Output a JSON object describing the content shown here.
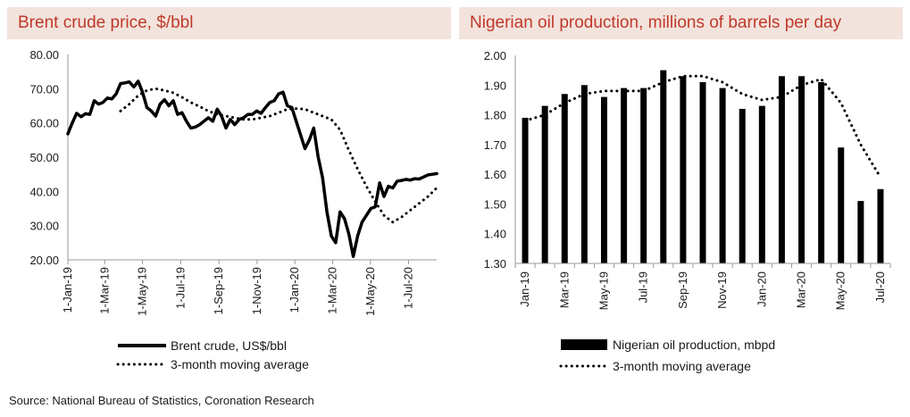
{
  "source": "Source: National Bureau of Statistics, Coronation Research",
  "chart_data": [
    {
      "type": "line",
      "title": "Brent crude price, $/bbl",
      "ylim": [
        20,
        80
      ],
      "yticks": [
        "20.00",
        "30.00",
        "40.00",
        "50.00",
        "60.00",
        "70.00",
        "80.00"
      ],
      "yticks_values": [
        20,
        30,
        40,
        50,
        60,
        70,
        80
      ],
      "x_range": [
        0,
        84
      ],
      "xticks": [
        {
          "x": 0,
          "label": "1-Jan-19"
        },
        {
          "x": 8.4,
          "label": "1-Mar-19"
        },
        {
          "x": 17,
          "label": "1-May-19"
        },
        {
          "x": 25.7,
          "label": "1-Jul-19"
        },
        {
          "x": 34.4,
          "label": "1-Sep-19"
        },
        {
          "x": 43.1,
          "label": "1-Nov-19"
        },
        {
          "x": 51.7,
          "label": "1-Jan-20"
        },
        {
          "x": 60.3,
          "label": "1-Mar-20"
        },
        {
          "x": 68.9,
          "label": "1-May-20"
        },
        {
          "x": 77.6,
          "label": "1-Jul-20"
        }
      ],
      "series": [
        {
          "name": "Brent crude, US$/bbl",
          "style": "solid",
          "x": [
            0,
            1,
            2,
            3,
            4,
            5,
            6,
            7,
            8,
            9,
            10,
            11,
            12,
            13,
            14,
            15,
            16,
            17,
            18,
            19,
            20,
            21,
            22,
            23,
            24,
            25,
            26,
            27,
            28,
            29,
            30,
            31,
            32,
            33,
            34,
            35,
            36,
            37,
            38,
            39,
            40,
            41,
            42,
            43,
            44,
            45,
            46,
            47,
            48,
            49,
            50,
            51,
            52,
            53,
            54,
            55,
            56,
            57,
            58,
            59,
            60,
            61,
            62,
            63,
            64,
            65,
            66,
            67,
            68,
            69,
            70,
            71,
            72,
            73,
            74,
            75,
            76,
            77,
            78,
            79,
            80,
            81,
            82,
            83,
            84
          ],
          "values": [
            56.8,
            60,
            62.8,
            61.8,
            62.7,
            62.5,
            66.5,
            65.5,
            66,
            67.3,
            67,
            68.5,
            71.5,
            71.7,
            72,
            70.5,
            72.2,
            69,
            64.5,
            63.5,
            62,
            65.5,
            66.8,
            65,
            66.5,
            62.5,
            63,
            60.5,
            58.5,
            58.8,
            59.5,
            60.5,
            61.5,
            60.5,
            64,
            62,
            58.5,
            61,
            59.5,
            61,
            61.5,
            62.5,
            62.5,
            63.5,
            62.8,
            64.5,
            66,
            66.5,
            68.5,
            69,
            65,
            64.5,
            60.5,
            56.5,
            52.5,
            55,
            58.5,
            50,
            44,
            34,
            27,
            25,
            34,
            32,
            27.5,
            21,
            27,
            31,
            33,
            35,
            35.5,
            42.5,
            38.5,
            41.5,
            41,
            43,
            43.2,
            43.5,
            43.3,
            43.7,
            43.6,
            44.2,
            44.8,
            45,
            45.2
          ],
          "color": "#000000"
        },
        {
          "name": "3-month moving average",
          "style": "dotted",
          "x": [
            12,
            14,
            16,
            18,
            20,
            22,
            24,
            26,
            28,
            30,
            32,
            34,
            36,
            38,
            40,
            42,
            44,
            46,
            48,
            50,
            52,
            54,
            56,
            58,
            60,
            62,
            64,
            66,
            68,
            70,
            72,
            74,
            76,
            78,
            80,
            82,
            84
          ],
          "values": [
            63.5,
            65.5,
            68,
            69.5,
            70,
            69.5,
            68.8,
            67.5,
            66,
            64.8,
            63.5,
            62.5,
            62,
            61.5,
            61,
            61,
            61.5,
            62,
            63,
            64,
            64.2,
            64,
            63,
            62,
            61,
            58,
            52,
            46.5,
            41.5,
            37,
            33,
            31,
            32.5,
            34.5,
            36.5,
            38.5,
            41
          ],
          "color": "#000000"
        }
      ]
    },
    {
      "type": "bar",
      "title": "Nigerian oil production, millions of barrels per day",
      "ylim": [
        1.3,
        2.0
      ],
      "yticks": [
        "1.30",
        "1.40",
        "1.50",
        "1.60",
        "1.70",
        "1.80",
        "1.90",
        "2.00"
      ],
      "yticks_values": [
        1.3,
        1.4,
        1.5,
        1.6,
        1.7,
        1.8,
        1.9,
        2.0
      ],
      "categories": [
        "Jan-19",
        "Feb-19",
        "Mar-19",
        "Apr-19",
        "May-19",
        "Jun-19",
        "Jul-19",
        "Aug-19",
        "Sep-19",
        "Oct-19",
        "Nov-19",
        "Dec-19",
        "Jan-20",
        "Feb-20",
        "Mar-20",
        "Apr-20",
        "May-20",
        "Jun-20",
        "Jul-20"
      ],
      "xtick_labels": [
        "Jan-19",
        "",
        "Mar-19",
        "",
        "May-19",
        "",
        "Jul-19",
        "",
        "Sep-19",
        "",
        "Nov-19",
        "",
        "Jan-20",
        "",
        "Mar-20",
        "",
        "May-20",
        "",
        "Jul-20"
      ],
      "series": [
        {
          "name": "Nigerian oil production, mbpd",
          "style": "bar",
          "values": [
            1.79,
            1.83,
            1.87,
            1.9,
            1.86,
            1.89,
            1.89,
            1.95,
            1.93,
            1.91,
            1.89,
            1.82,
            1.83,
            1.93,
            1.93,
            1.91,
            1.69,
            1.51,
            1.55
          ],
          "color": "#000000"
        },
        {
          "name": "3-month moving average",
          "style": "dotted",
          "values": [
            1.78,
            1.8,
            1.84,
            1.87,
            1.88,
            1.88,
            1.88,
            1.91,
            1.93,
            1.93,
            1.91,
            1.87,
            1.85,
            1.86,
            1.9,
            1.92,
            1.84,
            1.7,
            1.59
          ],
          "color": "#000000"
        }
      ]
    }
  ]
}
